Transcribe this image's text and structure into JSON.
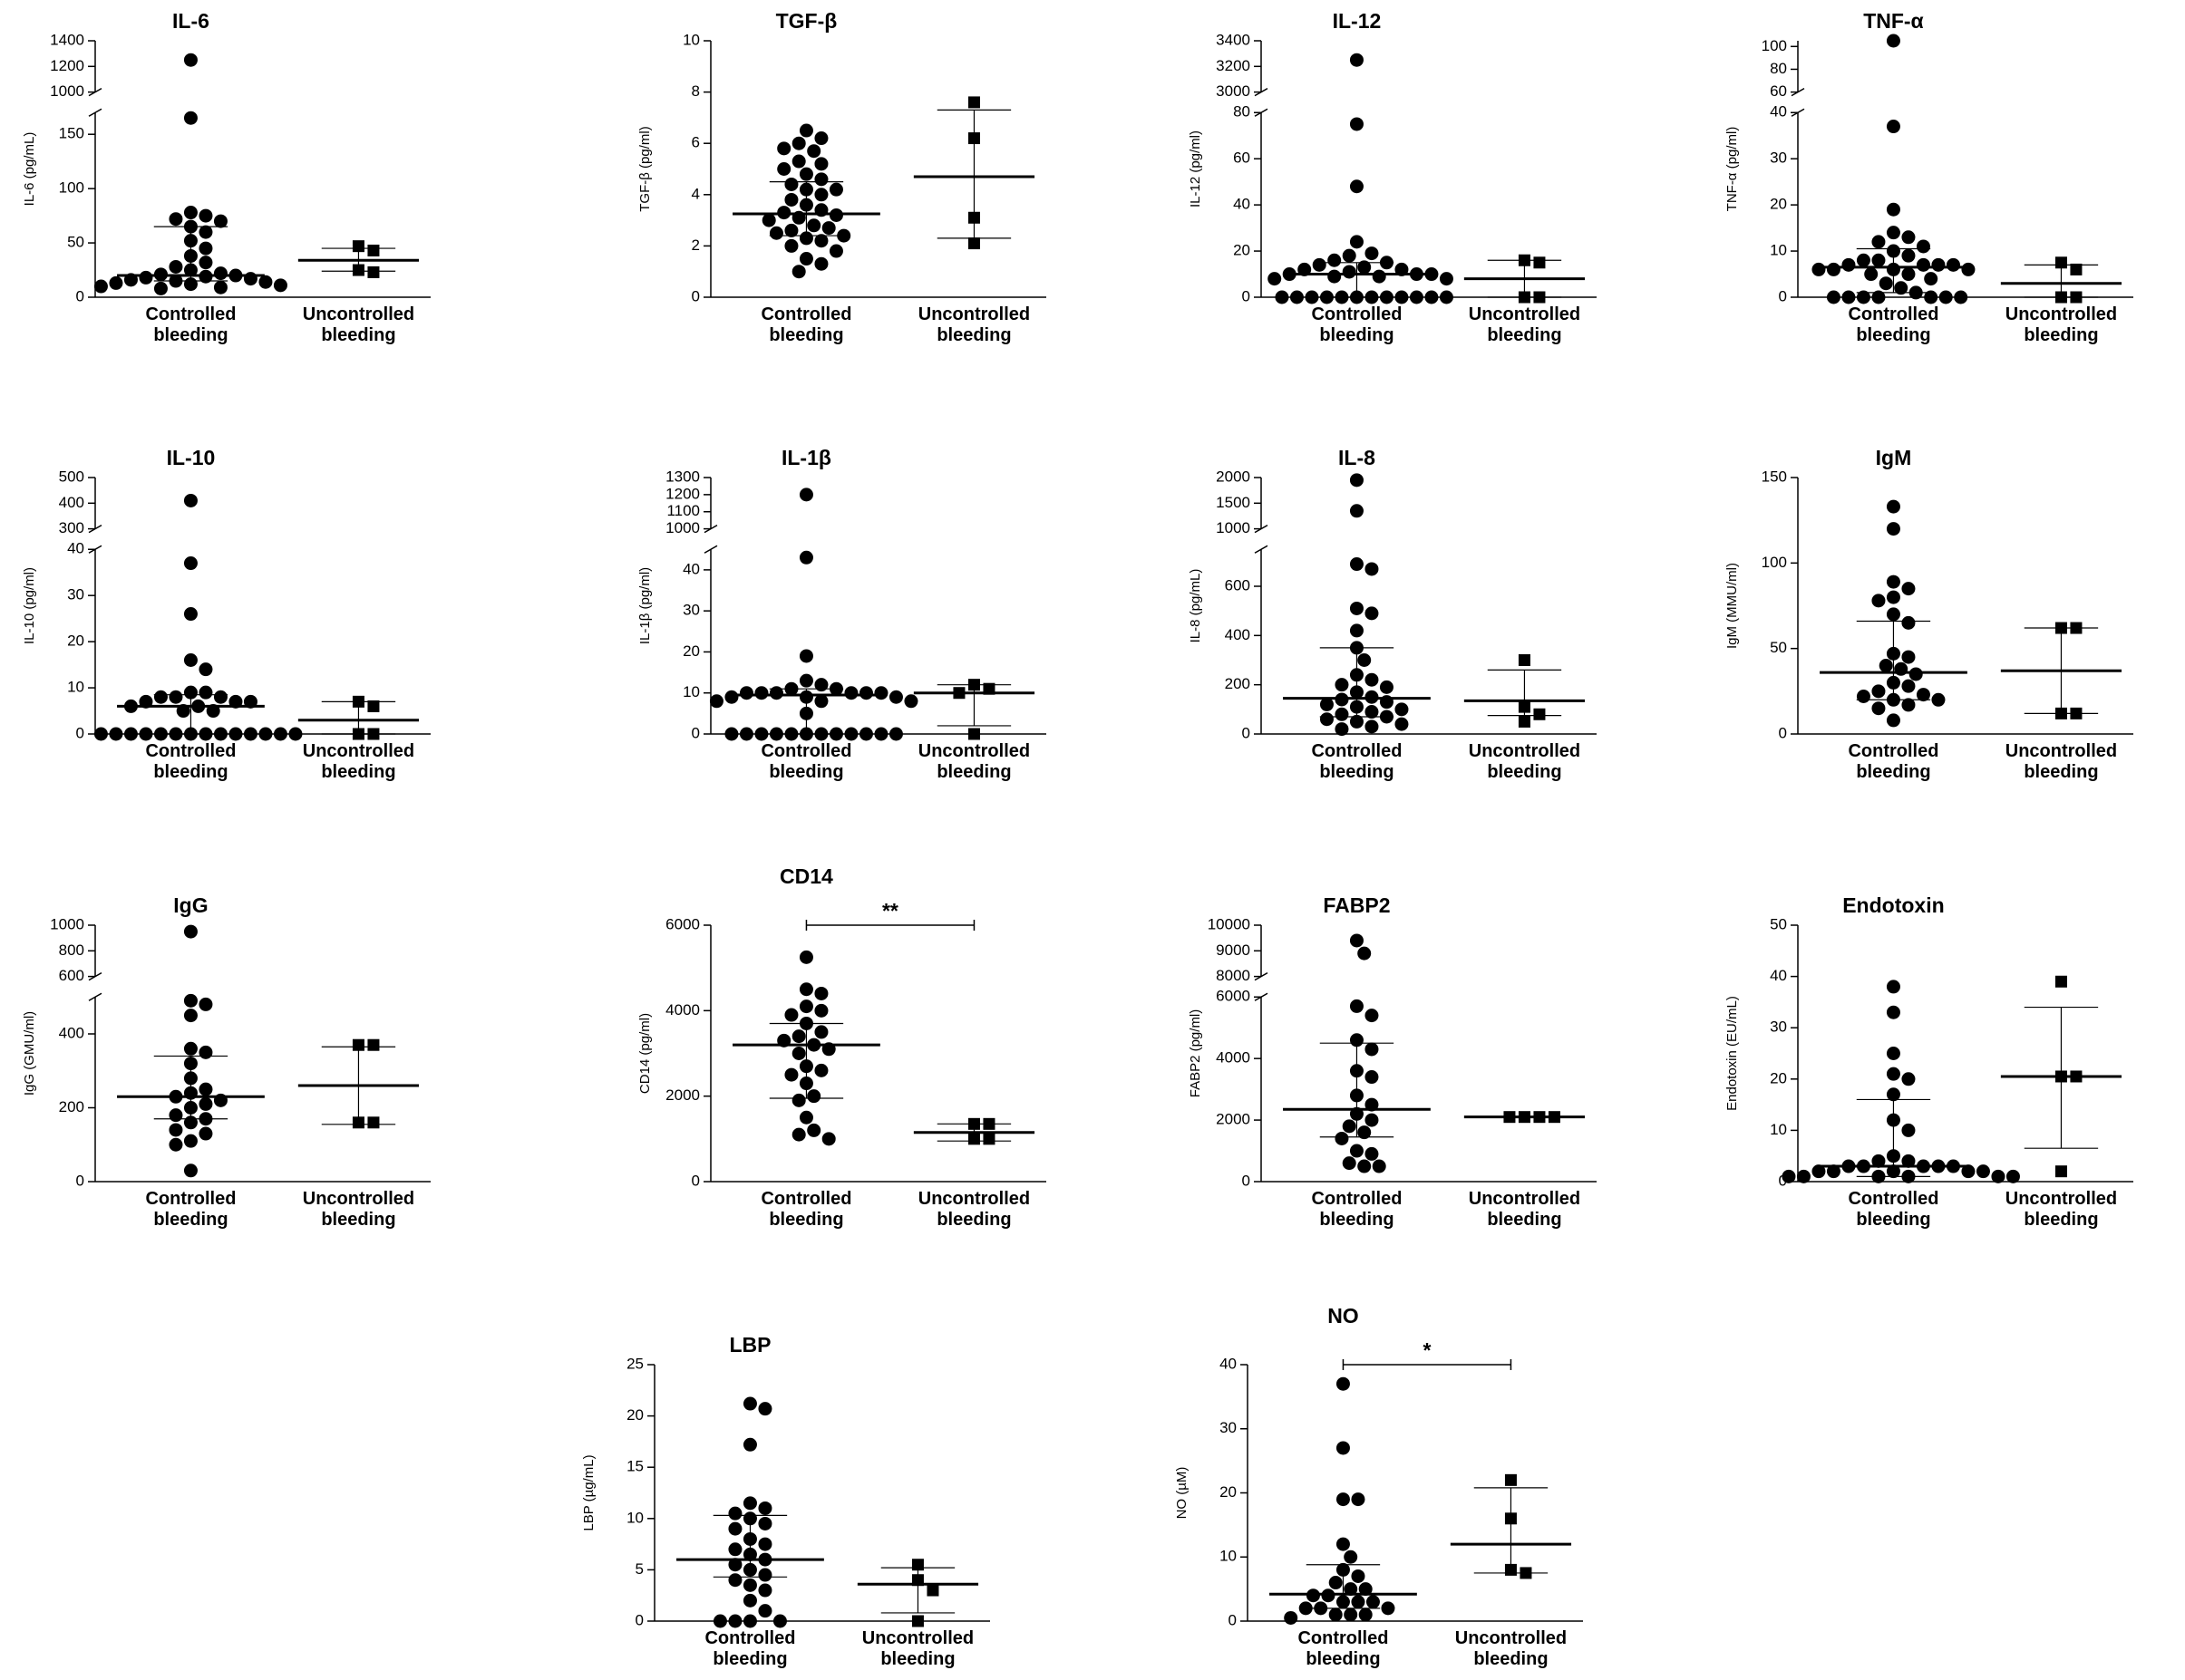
{
  "chart_data": [
    {
      "type": "dot",
      "title": "IL-6",
      "ylabel": "IL-6 (pg/mL)",
      "color": "#000000",
      "categories": [
        "Controlled bleeding",
        "Uncontrolled bleeding"
      ],
      "axes": [
        {
          "ylim": [
            0,
            170
          ],
          "yticks": [
            0,
            50,
            100,
            150
          ]
        },
        {
          "ylim": [
            1000,
            1400
          ],
          "yticks": [
            1000,
            1200,
            1400
          ]
        }
      ],
      "groups": [
        {
          "marker": "circle",
          "values": [
            1250,
            165,
            78,
            75,
            72,
            70,
            65,
            60,
            52,
            45,
            38,
            32,
            28,
            25,
            22,
            21,
            20,
            19,
            18,
            17,
            16,
            15,
            14,
            13,
            12,
            11,
            10,
            9,
            8
          ],
          "median": 20,
          "q1": 15,
          "q3": 65
        },
        {
          "marker": "square",
          "values": [
            47,
            43,
            25,
            23
          ],
          "median": 34,
          "q1": 24,
          "q3": 45
        }
      ]
    },
    {
      "type": "dot",
      "title": "TGF-β",
      "ylabel": "TGF-β (pg/ml)",
      "color": "#000000",
      "categories": [
        "Controlled bleeding",
        "Uncontrolled bleeding"
      ],
      "axes": [
        {
          "ylim": [
            0,
            10
          ],
          "yticks": [
            0,
            2,
            4,
            6,
            8,
            10
          ]
        }
      ],
      "groups": [
        {
          "marker": "circle",
          "values": [
            6.5,
            6.2,
            6.0,
            5.8,
            5.7,
            5.3,
            5.2,
            5.0,
            4.8,
            4.6,
            4.4,
            4.2,
            4.2,
            4.0,
            3.8,
            3.6,
            3.4,
            3.3,
            3.2,
            3.1,
            3.0,
            2.8,
            2.7,
            2.6,
            2.5,
            2.4,
            2.3,
            2.2,
            2.0,
            1.8,
            1.5,
            1.3,
            1.0
          ],
          "median": 3.25,
          "q1": 2.4,
          "q3": 4.5
        },
        {
          "marker": "square",
          "values": [
            7.6,
            6.2,
            3.1,
            2.1
          ],
          "median": 4.7,
          "q1": 2.3,
          "q3": 7.3
        }
      ]
    },
    {
      "type": "dot",
      "title": "IL-12",
      "ylabel": "IL-12 (pg/ml)",
      "color": "#000000",
      "categories": [
        "Controlled bleeding",
        "Uncontrolled bleeding"
      ],
      "axes": [
        {
          "ylim": [
            0,
            80
          ],
          "yticks": [
            0,
            20,
            40,
            60,
            80
          ]
        },
        {
          "ylim": [
            3000,
            3400
          ],
          "yticks": [
            3000,
            3200,
            3400
          ]
        }
      ],
      "groups": [
        {
          "marker": "circle",
          "values": [
            3250,
            75,
            48,
            24,
            19,
            18,
            16,
            15,
            14,
            13,
            12,
            12,
            11,
            10,
            10,
            10,
            9,
            9,
            8,
            8,
            0,
            0,
            0,
            0,
            0,
            0,
            0,
            0,
            0,
            0,
            0,
            0
          ],
          "median": 10,
          "q1": 0,
          "q3": 15
        },
        {
          "marker": "square",
          "values": [
            16,
            15,
            0,
            0
          ],
          "median": 8,
          "q1": 0,
          "q3": 16
        }
      ]
    },
    {
      "type": "dot",
      "title": "TNF-α",
      "ylabel": "TNF-α (pg/ml)",
      "color": "#000000",
      "categories": [
        "Controlled bleeding",
        "Uncontrolled bleeding"
      ],
      "axes": [
        {
          "ylim": [
            0,
            40
          ],
          "yticks": [
            0,
            10,
            20,
            30,
            40
          ]
        },
        {
          "ylim": [
            60,
            105
          ],
          "yticks": [
            60,
            80,
            100
          ]
        }
      ],
      "groups": [
        {
          "marker": "circle",
          "values": [
            105,
            37,
            19,
            14,
            13,
            12,
            11,
            10,
            9,
            8,
            8,
            7,
            7,
            7,
            7,
            6,
            6,
            6,
            6,
            5,
            5,
            4,
            3,
            2,
            1,
            0,
            0,
            0,
            0,
            0,
            0,
            0
          ],
          "median": 6.5,
          "q1": 1,
          "q3": 10.5
        },
        {
          "marker": "square",
          "values": [
            7.5,
            6,
            0,
            0
          ],
          "median": 3,
          "q1": 0,
          "q3": 7
        }
      ]
    },
    {
      "type": "dot",
      "title": "IL-10",
      "ylabel": "IL-10 (pg/ml)",
      "color": "#000000",
      "categories": [
        "Controlled bleeding",
        "Uncontrolled bleeding"
      ],
      "axes": [
        {
          "ylim": [
            0,
            40
          ],
          "yticks": [
            0,
            10,
            20,
            30,
            40
          ]
        },
        {
          "ylim": [
            300,
            500
          ],
          "yticks": [
            300,
            400,
            500
          ]
        }
      ],
      "groups": [
        {
          "marker": "circle",
          "values": [
            410,
            37,
            26,
            16,
            14,
            9,
            9,
            8,
            8,
            8,
            7,
            7,
            7,
            6,
            6,
            5,
            5,
            0,
            0,
            0,
            0,
            0,
            0,
            0,
            0,
            0,
            0,
            0,
            0,
            0,
            0
          ],
          "median": 6,
          "q1": 0,
          "q3": 8.5
        },
        {
          "marker": "square",
          "values": [
            7,
            6,
            0,
            0
          ],
          "median": 3,
          "q1": 0,
          "q3": 7
        }
      ]
    },
    {
      "type": "dot",
      "title": "IL-1β",
      "ylabel": "IL-1β (pg/ml)",
      "color": "#000000",
      "categories": [
        "Controlled bleeding",
        "Uncontrolled bleeding"
      ],
      "axes": [
        {
          "ylim": [
            0,
            45
          ],
          "yticks": [
            0,
            10,
            20,
            30,
            40
          ]
        },
        {
          "ylim": [
            1000,
            1300
          ],
          "yticks": [
            1000,
            1100,
            1200,
            1300
          ]
        }
      ],
      "groups": [
        {
          "marker": "circle",
          "values": [
            1200,
            43,
            19,
            13,
            12,
            11,
            11,
            10,
            10,
            10,
            10,
            10,
            10,
            9,
            9,
            9,
            8,
            8,
            8,
            5,
            0,
            0,
            0,
            0,
            0,
            0,
            0,
            0,
            0,
            0,
            0,
            0
          ],
          "median": 9.5,
          "q1": 0,
          "q3": 11
        },
        {
          "marker": "square",
          "values": [
            12,
            11,
            10,
            0
          ],
          "median": 10,
          "q1": 2,
          "q3": 12
        }
      ]
    },
    {
      "type": "dot",
      "title": "IL-8",
      "ylabel": "IL-8 (pg/mL)",
      "color": "#000000",
      "categories": [
        "Controlled bleeding",
        "Uncontrolled bleeding"
      ],
      "axes": [
        {
          "ylim": [
            0,
            750
          ],
          "yticks": [
            0,
            200,
            400,
            600
          ]
        },
        {
          "ylim": [
            1000,
            2000
          ],
          "yticks": [
            1000,
            1500,
            2000
          ]
        }
      ],
      "groups": [
        {
          "marker": "circle",
          "values": [
            1950,
            1350,
            690,
            670,
            510,
            490,
            420,
            350,
            300,
            240,
            220,
            200,
            190,
            170,
            150,
            140,
            130,
            120,
            110,
            100,
            90,
            80,
            70,
            60,
            50,
            40,
            30,
            20
          ],
          "median": 145,
          "q1": 70,
          "q3": 350
        },
        {
          "marker": "square",
          "values": [
            300,
            110,
            80,
            50
          ],
          "median": 135,
          "q1": 75,
          "q3": 260
        }
      ]
    },
    {
      "type": "dot",
      "title": "IgM",
      "ylabel": "IgM (MMU/ml)",
      "color": "#000000",
      "categories": [
        "Controlled bleeding",
        "Uncontrolled bleeding"
      ],
      "axes": [
        {
          "ylim": [
            0,
            150
          ],
          "yticks": [
            0,
            50,
            100,
            150
          ]
        }
      ],
      "groups": [
        {
          "marker": "circle",
          "values": [
            133,
            120,
            89,
            85,
            80,
            78,
            70,
            65,
            47,
            45,
            40,
            38,
            35,
            30,
            28,
            25,
            23,
            22,
            20,
            20,
            17,
            15,
            8
          ],
          "median": 36,
          "q1": 20,
          "q3": 66
        },
        {
          "marker": "square",
          "values": [
            62,
            62,
            12,
            12
          ],
          "median": 37,
          "q1": 12,
          "q3": 62
        }
      ]
    },
    {
      "type": "dot",
      "title": "IgG",
      "ylabel": "IgG (GMU/ml)",
      "color": "#000000",
      "categories": [
        "Controlled bleeding",
        "Uncontrolled bleeding"
      ],
      "axes": [
        {
          "ylim": [
            0,
            500
          ],
          "yticks": [
            0,
            200,
            400
          ]
        },
        {
          "ylim": [
            600,
            1000
          ],
          "yticks": [
            600,
            800,
            1000
          ]
        }
      ],
      "groups": [
        {
          "marker": "circle",
          "values": [
            950,
            490,
            480,
            450,
            360,
            350,
            320,
            280,
            250,
            240,
            230,
            220,
            210,
            200,
            180,
            170,
            160,
            140,
            130,
            110,
            100,
            30
          ],
          "median": 230,
          "q1": 170,
          "q3": 340
        },
        {
          "marker": "square",
          "values": [
            370,
            370,
            160,
            160
          ],
          "median": 260,
          "q1": 155,
          "q3": 365
        }
      ]
    },
    {
      "type": "dot",
      "title": "CD14",
      "ylabel": "CD14 (pg/ml)",
      "color": "#000000",
      "annotation": "**",
      "categories": [
        "Controlled bleeding",
        "Uncontrolled bleeding"
      ],
      "axes": [
        {
          "ylim": [
            0,
            6000
          ],
          "yticks": [
            0,
            2000,
            4000,
            6000
          ]
        }
      ],
      "groups": [
        {
          "marker": "circle",
          "values": [
            5250,
            4500,
            4400,
            4100,
            4000,
            3900,
            3700,
            3500,
            3400,
            3300,
            3200,
            3100,
            3000,
            2700,
            2600,
            2500,
            2300,
            2000,
            1900,
            1500,
            1200,
            1100,
            1000
          ],
          "median": 3200,
          "q1": 1950,
          "q3": 3700
        },
        {
          "marker": "square",
          "values": [
            1350,
            1350,
            1000,
            1000
          ],
          "median": 1150,
          "q1": 950,
          "q3": 1350
        }
      ]
    },
    {
      "type": "dot",
      "title": "FABP2",
      "ylabel": "FABP2 (pg/ml)",
      "color": "#000000",
      "categories": [
        "Controlled bleeding",
        "Uncontrolled bleeding"
      ],
      "axes": [
        {
          "ylim": [
            0,
            6000
          ],
          "yticks": [
            0,
            2000,
            4000,
            6000
          ]
        },
        {
          "ylim": [
            8000,
            10000
          ],
          "yticks": [
            8000,
            9000,
            10000
          ]
        }
      ],
      "groups": [
        {
          "marker": "circle",
          "values": [
            9400,
            8900,
            5700,
            5400,
            4600,
            4300,
            3600,
            3400,
            2800,
            2500,
            2200,
            2000,
            1800,
            1600,
            1400,
            1000,
            900,
            600,
            500,
            500
          ],
          "median": 2350,
          "q1": 1450,
          "q3": 4500
        },
        {
          "marker": "square",
          "values": [
            2100,
            2100,
            2100,
            2100
          ],
          "median": 2100,
          "q1": 2100,
          "q3": 2100
        }
      ]
    },
    {
      "type": "dot",
      "title": "Endotoxin",
      "ylabel": "Endotoxin (EU/mL)",
      "color": "#000000",
      "categories": [
        "Controlled bleeding",
        "Uncontrolled bleeding"
      ],
      "axes": [
        {
          "ylim": [
            0,
            50
          ],
          "yticks": [
            0,
            10,
            20,
            30,
            40,
            50
          ]
        }
      ],
      "groups": [
        {
          "marker": "circle",
          "values": [
            38,
            33,
            25,
            21,
            20,
            17,
            12,
            10,
            5,
            4,
            4,
            3,
            3,
            3,
            3,
            3,
            2,
            2,
            2,
            2,
            2,
            1,
            1,
            1,
            1,
            1,
            1
          ],
          "median": 3,
          "q1": 1,
          "q3": 16
        },
        {
          "marker": "square",
          "values": [
            39,
            20.5,
            20.5,
            2
          ],
          "median": 20.5,
          "q1": 6.5,
          "q3": 34
        }
      ]
    },
    {
      "type": "dot",
      "title": "LBP",
      "ylabel": "LBP (µg/mL)",
      "color": "#000000",
      "categories": [
        "Controlled bleeding",
        "Uncontrolled bleeding"
      ],
      "axes": [
        {
          "ylim": [
            0,
            25
          ],
          "yticks": [
            0,
            5,
            10,
            15,
            20,
            25
          ]
        }
      ],
      "groups": [
        {
          "marker": "circle",
          "values": [
            21.2,
            20.7,
            17.2,
            11.5,
            11,
            10.5,
            10,
            9.5,
            9,
            8,
            7.5,
            7,
            6.5,
            6,
            5.5,
            5,
            4.5,
            4,
            3.5,
            3,
            2,
            1,
            0,
            0,
            0,
            0
          ],
          "median": 6,
          "q1": 4.3,
          "q3": 10.3
        },
        {
          "marker": "square",
          "values": [
            5.5,
            4,
            3,
            0
          ],
          "median": 3.6,
          "q1": 0.8,
          "q3": 5.2
        }
      ]
    },
    {
      "type": "dot",
      "title": "NO",
      "ylabel": "NO (µM)",
      "color": "#000000",
      "annotation": "*",
      "categories": [
        "Controlled bleeding",
        "Uncontrolled bleeding"
      ],
      "axes": [
        {
          "ylim": [
            0,
            40
          ],
          "yticks": [
            0,
            10,
            20,
            30,
            40
          ]
        }
      ],
      "groups": [
        {
          "marker": "circle",
          "values": [
            37,
            27,
            19,
            19,
            12,
            10,
            8,
            7,
            6,
            5,
            5,
            4,
            4,
            3,
            3,
            3,
            2,
            2,
            2,
            1,
            1,
            1,
            0.5
          ],
          "median": 4.2,
          "q1": 2,
          "q3": 8.8
        },
        {
          "marker": "square",
          "values": [
            22,
            16,
            8,
            7.5
          ],
          "median": 12,
          "q1": 7.5,
          "q3": 20.8
        }
      ]
    }
  ]
}
